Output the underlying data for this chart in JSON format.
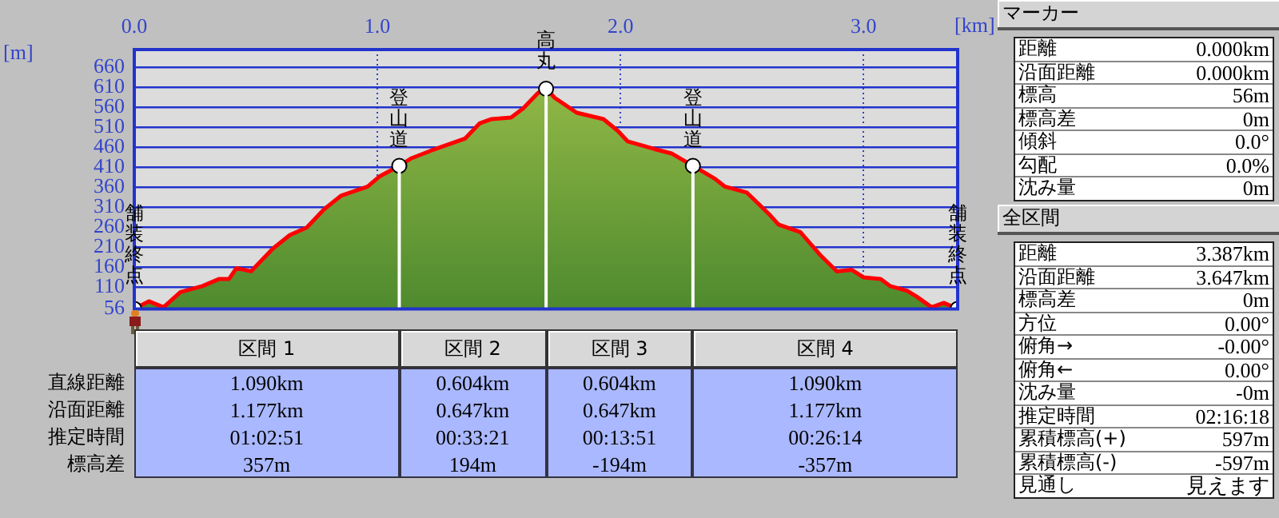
{
  "chart_data": [
    {
      "type": "area",
      "xlabel": "[km]",
      "ylabel": "[m]",
      "x": [
        0,
        0.06,
        0.12,
        0.19,
        0.28,
        0.35,
        0.39,
        0.42,
        0.48,
        0.57,
        0.64,
        0.71,
        0.78,
        0.85,
        0.96,
        1.01,
        1.09,
        1.14,
        1.22,
        1.29,
        1.36,
        1.42,
        1.47,
        1.55,
        1.6,
        1.66,
        1.694,
        1.73,
        1.82,
        1.93,
        1.99,
        2.03,
        2.14,
        2.21,
        2.298,
        2.39,
        2.43,
        2.52,
        2.61,
        2.65,
        2.74,
        2.82,
        2.89,
        2.95,
        3.0,
        3.07,
        3.11,
        3.18,
        3.22,
        3.28,
        3.33,
        3.387
      ],
      "series": [
        {
          "type": "area",
          "color": "#ff0000",
          "values": [
            56,
            75,
            60,
            98,
            113,
            131,
            131,
            158,
            150,
            207,
            241,
            260,
            305,
            339,
            362,
            388,
            414,
            433,
            452,
            467,
            482,
            520,
            531,
            535,
            558,
            596,
            607,
            584,
            547,
            531,
            501,
            475,
            456,
            445,
            414,
            381,
            362,
            347,
            294,
            267,
            248,
            192,
            150,
            154,
            135,
            131,
            113,
            101,
            86,
            60,
            71,
            56
          ]
        },
        {
          "type": "scatter",
          "color": "#ffffff",
          "marker": "circle",
          "x": [
            0,
            1.09,
            1.694,
            2.298,
            3.387
          ],
          "values": [
            56,
            414,
            607,
            414,
            56
          ]
        }
      ],
      "xlim": [
        0,
        3.387
      ],
      "ylim": [
        56,
        705
      ],
      "xticks": [
        {
          "value": 0,
          "label": "0.0"
        },
        {
          "value": 1,
          "label": "1.0"
        },
        {
          "value": 2,
          "label": "2.0"
        },
        {
          "value": 3,
          "label": "3.0"
        }
      ],
      "yticks": [
        56,
        110,
        160,
        210,
        260,
        310,
        360,
        410,
        460,
        510,
        560,
        610,
        660
      ],
      "grid": true,
      "legend": false,
      "ref_lines": [
        {
          "axis": "x",
          "value": 1.09,
          "color": "#ffffff"
        },
        {
          "axis": "x",
          "value": 1.694,
          "color": "#ffffff"
        },
        {
          "axis": "x",
          "value": 2.298,
          "color": "#ffffff"
        }
      ],
      "annotations": [
        {
          "text": "舗装終点",
          "x": 0,
          "y": 56
        },
        {
          "text": "登山道",
          "x": 1.09,
          "y": 414
        },
        {
          "text": "高丸",
          "x": 1.694,
          "y": 607
        },
        {
          "text": "登山道",
          "x": 2.298,
          "y": 414
        },
        {
          "text": "舗装終点",
          "x": 3.387,
          "y": 56
        }
      ]
    },
    {
      "type": "other",
      "categories": [
        "区間 1",
        "区間 2",
        "区間 3",
        "区間 4"
      ],
      "annotations": [
        "直線距離",
        "1.090km",
        "0.604km",
        "0.604km",
        "1.090km",
        "沿面距離",
        "1.177km",
        "0.647km",
        "0.647km",
        "1.177km",
        "推定時間",
        "01:02:51",
        "00:33:21",
        "00:13:51",
        "00:26:14",
        "標高差",
        "357m",
        "194m",
        "-194m",
        "-357m"
      ]
    },
    {
      "type": "other",
      "title": "マーカー",
      "annotations": [
        "距離",
        "0.000km",
        "沿面距離",
        "0.000km",
        "標高",
        "56m",
        "標高差",
        "0m",
        "傾斜",
        "0.0°",
        "勾配",
        "0.0%",
        "沈み量",
        "0m"
      ]
    },
    {
      "type": "other",
      "title": "全区間",
      "annotations": [
        "距離",
        "3.387km",
        "沿面距離",
        "3.647km",
        "標高差",
        "0m",
        "方位",
        "0.00°",
        "俯角→",
        "-0.00°",
        "俯角←",
        "0.00°",
        "沈み量",
        "-0m",
        "推定時間",
        "02:16:18",
        "累積標高(+)",
        "597m",
        "累積標高(-)",
        "-597m",
        "見通し",
        "見えます"
      ]
    }
  ]
}
